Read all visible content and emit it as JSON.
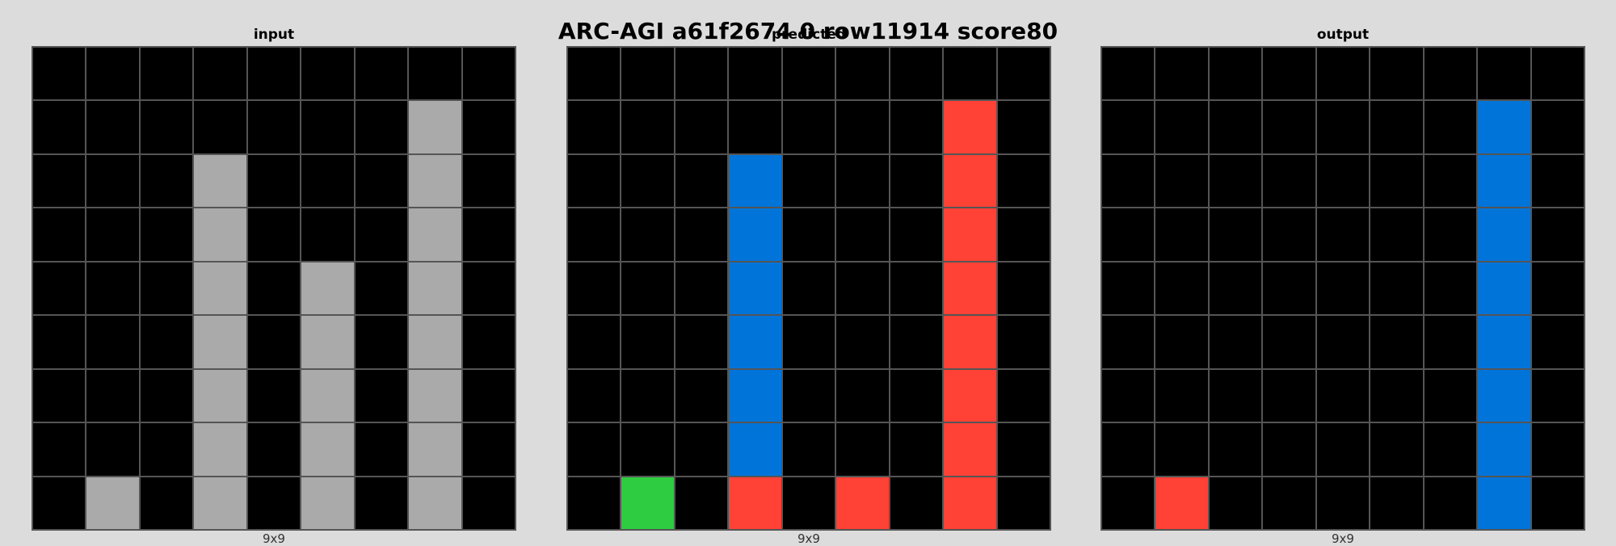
{
  "title": "ARC-AGI a61f2674 0 row11914 score80",
  "palette": {
    "0": "#000000",
    "1": "#0074d9",
    "2": "#ff4136",
    "3": "#2ecc40",
    "5": "#aaaaaa"
  },
  "panels": [
    {
      "label": "input",
      "size_label": "9x9",
      "grid": [
        [
          0,
          0,
          0,
          0,
          0,
          0,
          0,
          0,
          0
        ],
        [
          0,
          0,
          0,
          0,
          0,
          0,
          0,
          5,
          0
        ],
        [
          0,
          0,
          0,
          5,
          0,
          0,
          0,
          5,
          0
        ],
        [
          0,
          0,
          0,
          5,
          0,
          0,
          0,
          5,
          0
        ],
        [
          0,
          0,
          0,
          5,
          0,
          5,
          0,
          5,
          0
        ],
        [
          0,
          0,
          0,
          5,
          0,
          5,
          0,
          5,
          0
        ],
        [
          0,
          0,
          0,
          5,
          0,
          5,
          0,
          5,
          0
        ],
        [
          0,
          0,
          0,
          5,
          0,
          5,
          0,
          5,
          0
        ],
        [
          0,
          5,
          0,
          5,
          0,
          5,
          0,
          5,
          0
        ]
      ]
    },
    {
      "label": "predicted",
      "size_label": "9x9",
      "grid": [
        [
          0,
          0,
          0,
          0,
          0,
          0,
          0,
          0,
          0
        ],
        [
          0,
          0,
          0,
          0,
          0,
          0,
          0,
          2,
          0
        ],
        [
          0,
          0,
          0,
          1,
          0,
          0,
          0,
          2,
          0
        ],
        [
          0,
          0,
          0,
          1,
          0,
          0,
          0,
          2,
          0
        ],
        [
          0,
          0,
          0,
          1,
          0,
          0,
          0,
          2,
          0
        ],
        [
          0,
          0,
          0,
          1,
          0,
          0,
          0,
          2,
          0
        ],
        [
          0,
          0,
          0,
          1,
          0,
          0,
          0,
          2,
          0
        ],
        [
          0,
          0,
          0,
          1,
          0,
          0,
          0,
          2,
          0
        ],
        [
          0,
          3,
          0,
          2,
          0,
          2,
          0,
          2,
          0
        ]
      ]
    },
    {
      "label": "output",
      "size_label": "9x9",
      "grid": [
        [
          0,
          0,
          0,
          0,
          0,
          0,
          0,
          0,
          0
        ],
        [
          0,
          0,
          0,
          0,
          0,
          0,
          0,
          1,
          0
        ],
        [
          0,
          0,
          0,
          0,
          0,
          0,
          0,
          1,
          0
        ],
        [
          0,
          0,
          0,
          0,
          0,
          0,
          0,
          1,
          0
        ],
        [
          0,
          0,
          0,
          0,
          0,
          0,
          0,
          1,
          0
        ],
        [
          0,
          0,
          0,
          0,
          0,
          0,
          0,
          1,
          0
        ],
        [
          0,
          0,
          0,
          0,
          0,
          0,
          0,
          1,
          0
        ],
        [
          0,
          0,
          0,
          0,
          0,
          0,
          0,
          1,
          0
        ],
        [
          0,
          2,
          0,
          0,
          0,
          0,
          0,
          1,
          0
        ]
      ]
    }
  ]
}
